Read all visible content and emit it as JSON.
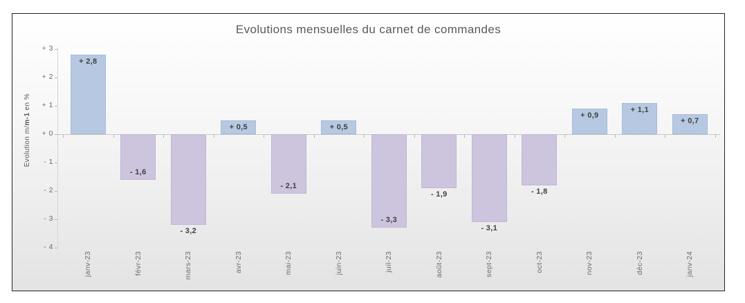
{
  "chart_data": {
    "type": "bar",
    "title": "Evolutions mensuelles du carnet de commandes",
    "xlabel": "",
    "ylabel": "Evolution m/m-1 en %",
    "ylabel_parts": [
      "Evolution m/",
      "m-1",
      " en %"
    ],
    "ylim": [
      -4,
      3
    ],
    "grid": false,
    "legend": false,
    "yticks": [
      {
        "value": 3,
        "label": "+ 3"
      },
      {
        "value": 2,
        "label": "+ 2"
      },
      {
        "value": 1,
        "label": "+ 1"
      },
      {
        "value": 0,
        "label": "+ 0"
      },
      {
        "value": -1,
        "label": "- 1"
      },
      {
        "value": -2,
        "label": "- 2"
      },
      {
        "value": -3,
        "label": "- 3"
      },
      {
        "value": -4,
        "label": "- 4"
      }
    ],
    "categories": [
      "janv-23",
      "févr-23",
      "mars-23",
      "avr-23",
      "mai-23",
      "juin-23",
      "juil-23",
      "août-23",
      "sept-23",
      "oct-23",
      "nov-23",
      "déc-23",
      "janv-24"
    ],
    "values": [
      2.8,
      -1.6,
      -3.2,
      0.5,
      -2.1,
      0.5,
      -3.3,
      -1.9,
      -3.1,
      -1.8,
      0.9,
      1.1,
      0.7
    ],
    "data_labels": [
      "+ 2,8",
      "- 1,6",
      "- 3,2",
      "+ 0,5",
      "- 2,1",
      "+ 0,5",
      "- 3,3",
      "- 1,9",
      "- 3,1",
      "- 1,8",
      "+ 0,9",
      "+ 1,1",
      "+ 0,7"
    ],
    "label_placement": [
      "inside",
      "inside",
      "outside",
      "inside",
      "inside",
      "inside",
      "inside",
      "outside",
      "outside",
      "outside",
      "inside",
      "inside",
      "inside"
    ],
    "colors": {
      "positive_fill": "#b7c9e2",
      "positive_border": "#a6bbd8",
      "negative_fill": "#cdc4dd",
      "negative_border": "#c1b5d5",
      "data_label_text": "#404040",
      "axis_text": "#696969",
      "title_text": "#595959"
    }
  }
}
